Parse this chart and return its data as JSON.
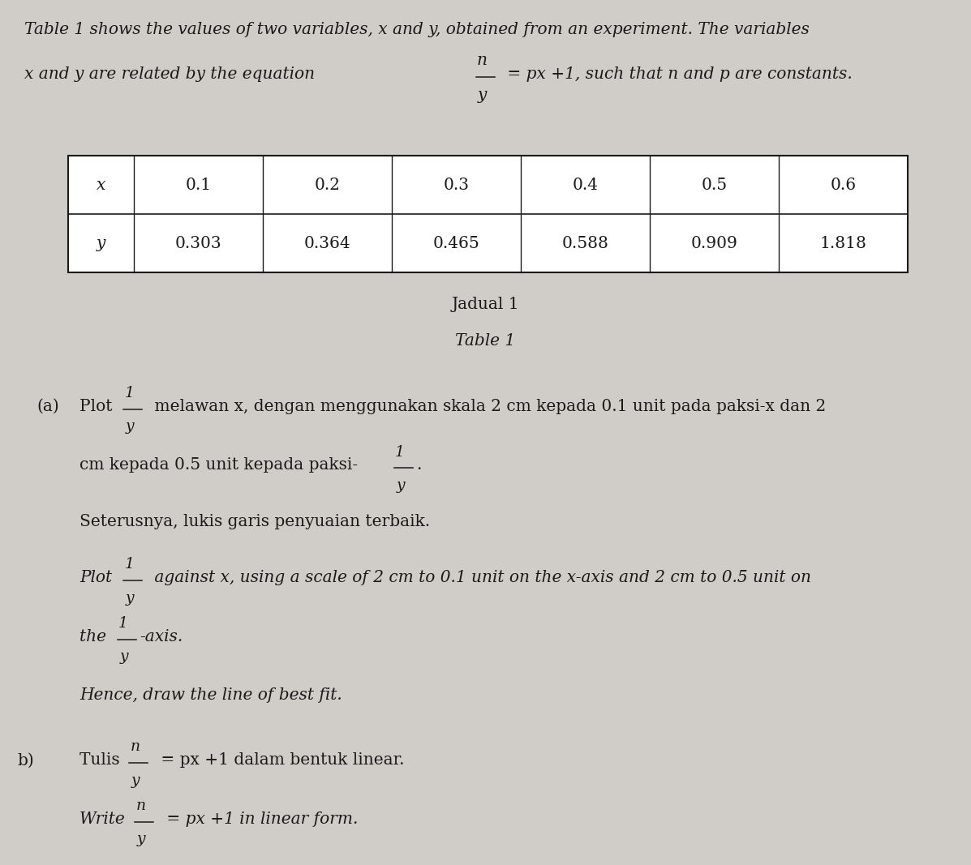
{
  "bg_color": "#d0ccc8",
  "text_color": "#1a1a1a",
  "x_values": [
    "x",
    "0.1",
    "0.2",
    "0.3",
    "0.4",
    "0.5",
    "0.6"
  ],
  "y_values": [
    "y",
    "0.303",
    "0.364",
    "0.465",
    "0.588",
    "0.909",
    "1.818"
  ],
  "jadual": "Jadual 1",
  "table1": "Table 1"
}
